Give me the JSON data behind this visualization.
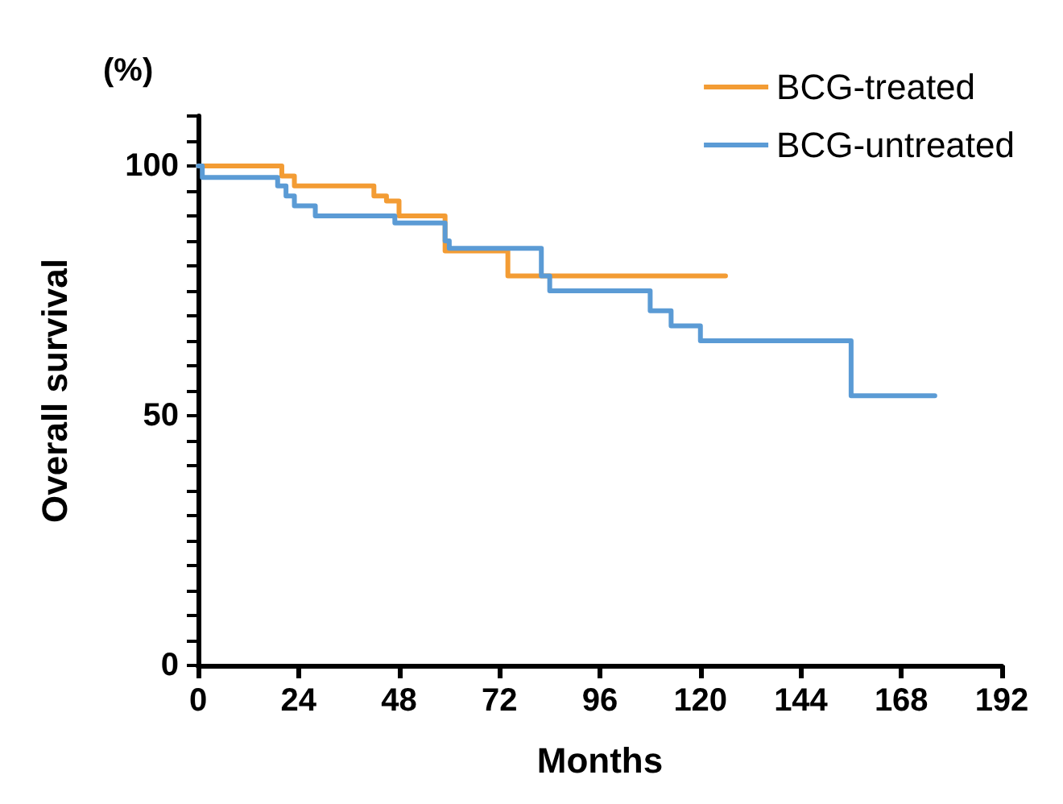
{
  "chart_data": {
    "type": "step",
    "xlabel": "Months",
    "ylabel": "Overall survival",
    "annotations": [
      "(%)"
    ],
    "series": [
      {
        "name": "BCG-treated",
        "color": "#f39c34",
        "x": [
          0,
          20,
          23,
          42,
          45,
          48,
          59,
          74,
          126
        ],
        "values": [
          100,
          98,
          96,
          94,
          93,
          90,
          83,
          78,
          78
        ]
      },
      {
        "name": "BCG-untreated",
        "color": "#5b9bd5",
        "x": [
          0,
          1,
          19,
          21,
          23,
          28,
          47,
          59,
          60,
          82,
          84,
          108,
          113,
          120,
          156,
          176
        ],
        "values": [
          100,
          97.7,
          96,
          94,
          92,
          90,
          88.6,
          85,
          83.5,
          78,
          75,
          71,
          68,
          65,
          54,
          54
        ]
      }
    ],
    "xlim": [
      0,
      192
    ],
    "xticks": [
      0,
      24,
      48,
      72,
      96,
      120,
      144,
      168,
      192
    ],
    "ylim": [
      0,
      110
    ],
    "yticks": [
      0,
      {
        "value": 5,
        "label": null
      },
      {
        "value": 10,
        "label": null
      },
      {
        "value": 15,
        "label": null
      },
      {
        "value": 20,
        "label": null
      },
      {
        "value": 25,
        "label": null
      },
      {
        "value": 30,
        "label": null
      },
      {
        "value": 35,
        "label": null
      },
      {
        "value": 40,
        "label": null
      },
      {
        "value": 45,
        "label": null
      },
      50,
      {
        "value": 55,
        "label": null
      },
      {
        "value": 60,
        "label": null
      },
      {
        "value": 65,
        "label": null
      },
      {
        "value": 70,
        "label": null
      },
      {
        "value": 75,
        "label": null
      },
      {
        "value": 80,
        "label": null
      },
      {
        "value": 85,
        "label": null
      },
      {
        "value": 90,
        "label": null
      },
      {
        "value": 95,
        "label": null
      },
      100,
      {
        "value": 105,
        "label": null
      },
      {
        "value": 110,
        "label": null
      }
    ],
    "grid": false,
    "legend": "top right",
    "marker": "none",
    "line_style": "solid"
  }
}
